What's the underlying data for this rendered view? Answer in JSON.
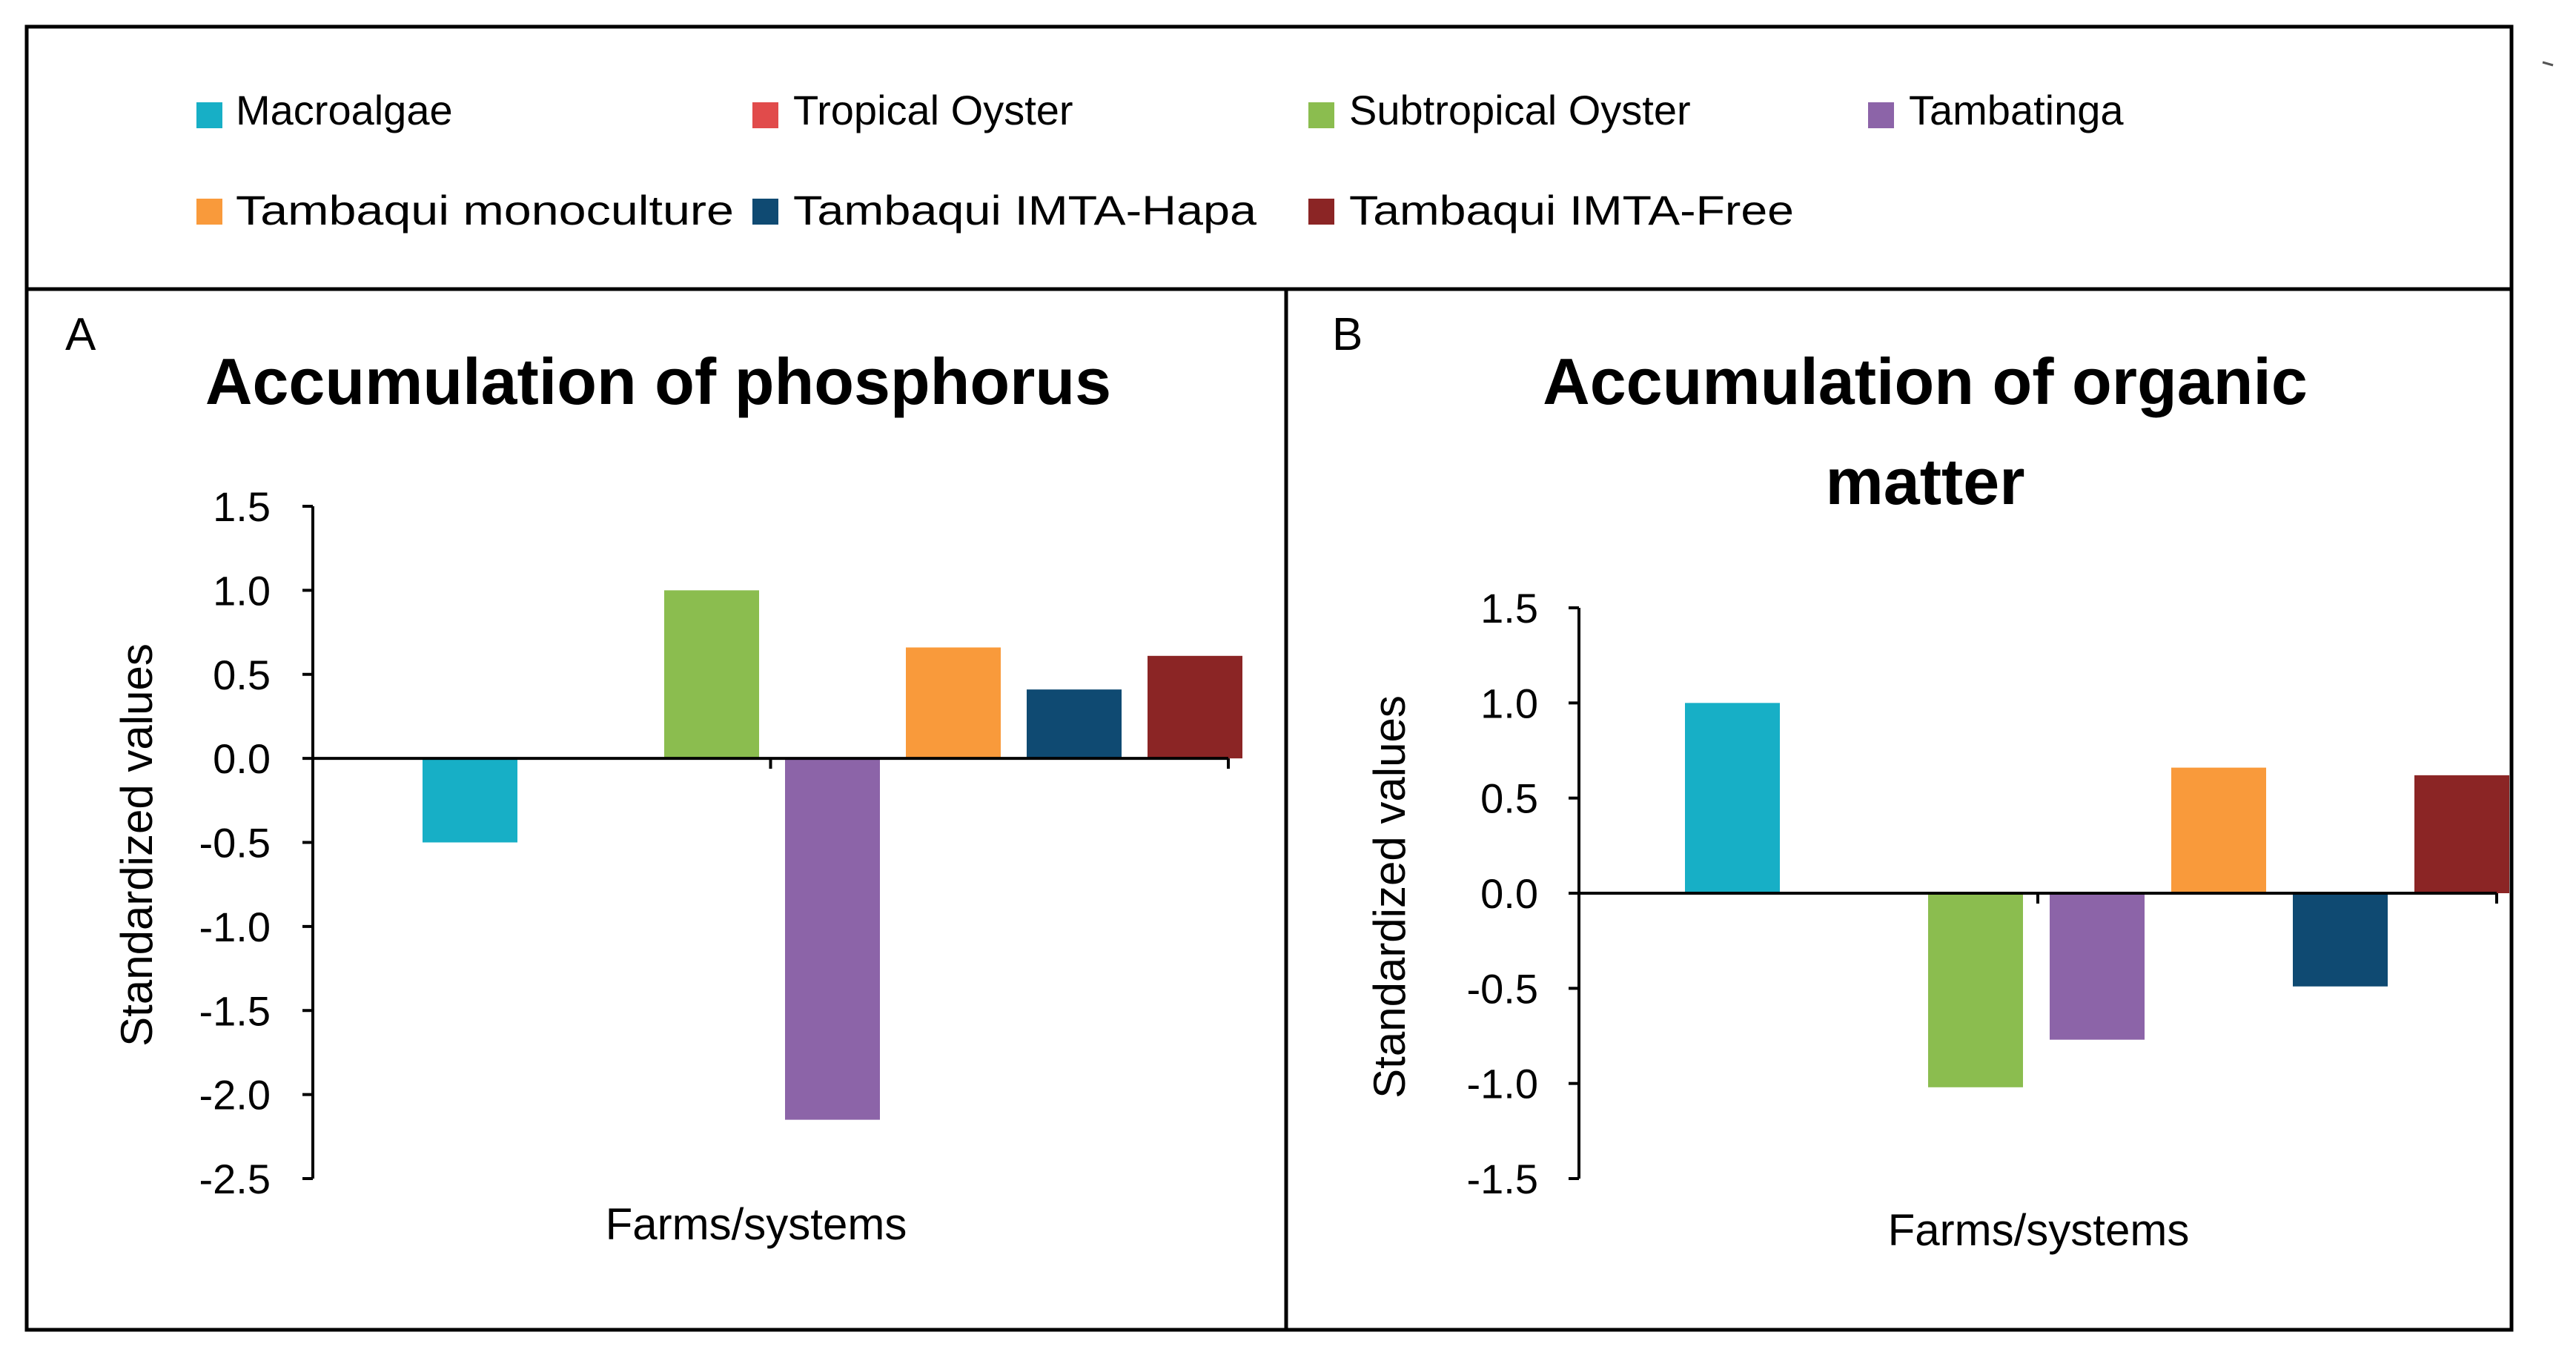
{
  "legend": {
    "entries": [
      {
        "label": "Macroalgae",
        "color": "#17AFC6"
      },
      {
        "label": "Tropical Oyster",
        "color": "#E14B4B"
      },
      {
        "label": "Subtropical Oyster",
        "color": "#8BBD4F"
      },
      {
        "label": "Tambatinga",
        "color": "#8C64A8"
      },
      {
        "label": "Tambaqui monoculture",
        "color": "#F99A3B"
      },
      {
        "label": "Tambaqui IMTA-Hapa",
        "color": "#0F4A72"
      },
      {
        "label": "Tambaqui IMTA-Free",
        "color": "#8B2525"
      }
    ]
  },
  "chart_data": [
    {
      "panel": "A",
      "type": "bar",
      "title": [
        "Accumulation of phosphorus"
      ],
      "xlabel": "Farms/systems",
      "ylabel": "Standardized values",
      "ylim": [
        -2.5,
        1.5
      ],
      "yticks": [
        "1.5",
        "1.0",
        "0.5",
        "0.0",
        "-0.5",
        "-1.0",
        "-1.5",
        "-2.0",
        "-2.5"
      ],
      "ytick_values": [
        1.5,
        1.0,
        0.5,
        0.0,
        -0.5,
        -1.0,
        -1.5,
        -2.0,
        -2.5
      ],
      "categories": [
        "Macroalgae",
        "Tropical Oyster",
        "Subtropical Oyster",
        "Tambatinga",
        "Tambaqui monoculture",
        "Tambaqui IMTA-Hapa",
        "Tambaqui IMTA-Free"
      ],
      "values": [
        -0.5,
        0.0,
        1.0,
        -2.15,
        0.66,
        0.41,
        0.61
      ],
      "legend_placement": "top"
    },
    {
      "panel": "B",
      "type": "bar",
      "title": [
        "Accumulation of organic",
        "matter"
      ],
      "xlabel": "Farms/systems",
      "ylabel": "Standardized values",
      "ylim": [
        -1.5,
        1.5
      ],
      "yticks": [
        "1.5",
        "1.0",
        "0.5",
        "0.0",
        "-0.5",
        "-1.0",
        "-1.5"
      ],
      "ytick_values": [
        1.5,
        1.0,
        0.5,
        0.0,
        -0.5,
        -1.0,
        -1.5
      ],
      "categories": [
        "Macroalgae",
        "Tropical Oyster",
        "Subtropical Oyster",
        "Tambatinga",
        "Tambaqui monoculture",
        "Tambaqui IMTA-Hapa",
        "Tambaqui IMTA-Free"
      ],
      "values": [
        1.0,
        0.0,
        -1.02,
        -0.77,
        0.66,
        -0.49,
        0.62
      ],
      "legend_placement": "top"
    }
  ]
}
